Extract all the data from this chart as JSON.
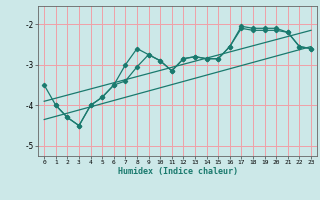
{
  "xlabel": "Humidex (Indice chaleur)",
  "bg_color": "#cce8e8",
  "line_color": "#1a7a6e",
  "grid_color": "#f0a0a8",
  "xlim": [
    -0.5,
    23.5
  ],
  "ylim": [
    -5.25,
    -1.55
  ],
  "yticks": [
    -5,
    -4,
    -3,
    -2
  ],
  "xticks": [
    0,
    1,
    2,
    3,
    4,
    5,
    6,
    7,
    8,
    9,
    10,
    11,
    12,
    13,
    14,
    15,
    16,
    17,
    18,
    19,
    20,
    21,
    22,
    23
  ],
  "line1_x": [
    0,
    1,
    2,
    3,
    4,
    5,
    6,
    7,
    8,
    9,
    10,
    11,
    12,
    13,
    14,
    15,
    16,
    17,
    18,
    19,
    20,
    21,
    22,
    23
  ],
  "line1_y": [
    -3.5,
    -4.0,
    -4.3,
    -4.5,
    -4.0,
    -3.8,
    -3.5,
    -3.0,
    -2.6,
    -2.75,
    -2.9,
    -3.15,
    -2.85,
    -2.8,
    -2.85,
    -2.85,
    -2.55,
    -2.05,
    -2.1,
    -2.1,
    -2.1,
    -2.2,
    -2.55,
    -2.6
  ],
  "line2_x": [
    1,
    2,
    3,
    4,
    5,
    6,
    7,
    8,
    9,
    10,
    11,
    12,
    13,
    14,
    15,
    16,
    17,
    18,
    19,
    20,
    21,
    22,
    23
  ],
  "line2_y": [
    -4.0,
    -4.3,
    -4.5,
    -4.0,
    -3.8,
    -3.5,
    -3.4,
    -3.05,
    -2.75,
    -2.9,
    -3.15,
    -2.85,
    -2.8,
    -2.85,
    -2.85,
    -2.55,
    -2.1,
    -2.15,
    -2.15,
    -2.15,
    -2.2,
    -2.55,
    -2.6
  ],
  "trend1_x": [
    0,
    23
  ],
  "trend1_y": [
    -4.35,
    -2.55
  ],
  "trend2_x": [
    0,
    23
  ],
  "trend2_y": [
    -3.9,
    -2.15
  ]
}
